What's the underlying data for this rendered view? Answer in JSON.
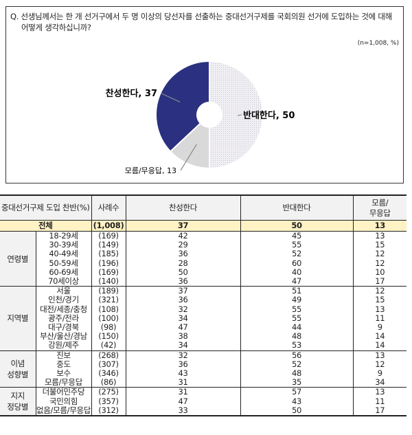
{
  "question_line1": "Q. 선생님께서는 한 개 선거구에서 두 명 이상의 당선자를 선출하는 중대선거구제를 국회의원 선거에 도입하는 것에 대해",
  "question_line2": "어떻게 생각하십니까?",
  "note": "(n=1,008, %)",
  "chart_data": {
    "type": "pie",
    "donut": true,
    "slices": [
      {
        "label": "반대한다, 50",
        "name": "반대한다",
        "value": 50,
        "color": "#ebe9ef"
      },
      {
        "label": "모름/무응답, 13",
        "name": "모름/무응답",
        "value": 13,
        "color": "#d9d9d9"
      },
      {
        "label": "찬성한다, 37",
        "name": "찬성한다",
        "value": 37,
        "color": "#2b3180"
      }
    ]
  },
  "table": {
    "headers": [
      "중대선거구제 도입 찬반(%)",
      "사례수",
      "찬성한다",
      "반대한다",
      "모름/\n무응답"
    ],
    "total": {
      "label": "전체",
      "n": "(1,008)",
      "values": [
        "37",
        "50",
        "13"
      ]
    },
    "groups": [
      {
        "name": "연령별",
        "rows": [
          {
            "label": "18-29세",
            "n": "(169)",
            "values": [
              "42",
              "45",
              "13"
            ]
          },
          {
            "label": "30-39세",
            "n": "(149)",
            "values": [
              "29",
              "55",
              "15"
            ]
          },
          {
            "label": "40-49세",
            "n": "(185)",
            "values": [
              "36",
              "52",
              "12"
            ]
          },
          {
            "label": "50-59세",
            "n": "(196)",
            "values": [
              "28",
              "60",
              "12"
            ]
          },
          {
            "label": "60-69세",
            "n": "(169)",
            "values": [
              "50",
              "40",
              "10"
            ]
          },
          {
            "label": "70세이상",
            "n": "(140)",
            "values": [
              "36",
              "47",
              "17"
            ]
          }
        ]
      },
      {
        "name": "지역별",
        "rows": [
          {
            "label": "서울",
            "n": "(189)",
            "values": [
              "37",
              "51",
              "12"
            ]
          },
          {
            "label": "인천/경기",
            "n": "(321)",
            "values": [
              "36",
              "49",
              "15"
            ]
          },
          {
            "label": "대전/세종/충청",
            "n": "(108)",
            "values": [
              "32",
              "55",
              "13"
            ]
          },
          {
            "label": "광주/전라",
            "n": "(100)",
            "values": [
              "34",
              "55",
              "11"
            ]
          },
          {
            "label": "대구/경북",
            "n": "(98)",
            "values": [
              "47",
              "44",
              "9"
            ]
          },
          {
            "label": "부산/울산/경남",
            "n": "(150)",
            "values": [
              "38",
              "48",
              "14"
            ]
          },
          {
            "label": "강원/제주",
            "n": "(42)",
            "values": [
              "34",
              "53",
              "14"
            ]
          }
        ]
      },
      {
        "name": "이념\n성향별",
        "rows": [
          {
            "label": "진보",
            "n": "(268)",
            "values": [
              "32",
              "56",
              "13"
            ]
          },
          {
            "label": "중도",
            "n": "(307)",
            "values": [
              "36",
              "52",
              "12"
            ]
          },
          {
            "label": "보수",
            "n": "(346)",
            "values": [
              "43",
              "48",
              "9"
            ]
          },
          {
            "label": "모름/무응답",
            "n": "(86)",
            "values": [
              "31",
              "35",
              "34"
            ]
          }
        ]
      },
      {
        "name": "지지\n정당별",
        "rows": [
          {
            "label": "더불어민주당",
            "n": "(275)",
            "values": [
              "31",
              "57",
              "13"
            ]
          },
          {
            "label": "국민의힘",
            "n": "(357)",
            "values": [
              "47",
              "43",
              "11"
            ]
          },
          {
            "label": "없음/모름/무응답",
            "n": "(312)",
            "values": [
              "33",
              "50",
              "17"
            ]
          }
        ]
      }
    ]
  }
}
